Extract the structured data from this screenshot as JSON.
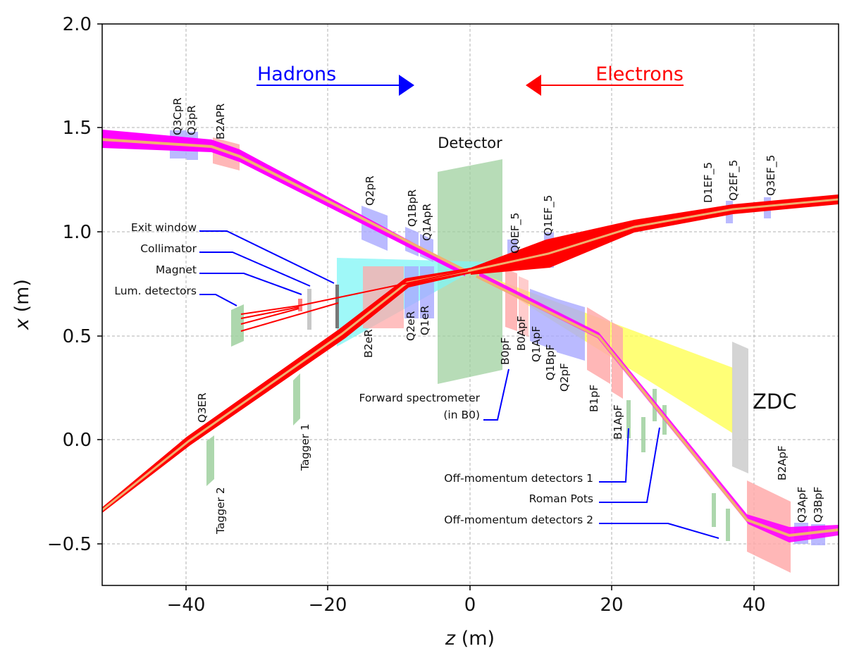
{
  "axes": {
    "xlabel_pre": "z",
    "xlabel_unit": " (m)",
    "ylabel_pre": "x",
    "ylabel_unit": " (m)",
    "xlim": [
      -52,
      52
    ],
    "ylim": [
      -0.7,
      2.0
    ],
    "xticks": [
      "−40",
      "−20",
      "0",
      "20",
      "40"
    ],
    "yticks": [
      "2.0",
      "1.5",
      "1.0",
      "0.5",
      "0.0",
      "−0.5"
    ],
    "grid": true
  },
  "colors": {
    "hadron_beam": "#ff00ff",
    "electron_beam": "#ff0000",
    "beam_core": "#f0b070",
    "hadron_arrow": "#0000ff",
    "electron_arrow": "#ff0000",
    "detector": "#9fd09f",
    "cyan_cone": "#7ff5f5",
    "yellow_cone": "#ffff66",
    "magnet_blue": "#a9a9ff",
    "magnet_pink": "#ffaaaa",
    "zdc": "#d0d0d0"
  },
  "arrows": {
    "hadrons": "Hadrons",
    "electrons": "Electrons"
  },
  "labels": {
    "detector": "Detector",
    "zdc": "ZDC"
  },
  "elements": {
    "Q3CpR": "Q3CpR",
    "Q3pR": "Q3pR",
    "B2APR": "B2APR",
    "Q2pR": "Q2pR",
    "Q1BpR": "Q1BpR",
    "Q1ApR": "Q1ApR",
    "Q0EF_5": "Q0EF_5",
    "Q1EF_5": "Q1EF_5",
    "D1EF_5": "D1EF_5",
    "Q2EF_5": "Q2EF_5",
    "Q3EF_5": "Q3EF_5",
    "B2eR": "B2eR",
    "Q2eR": "Q2eR",
    "Q1eR": "Q1eR",
    "B0pF": "B0pF",
    "B0ApF": "B0ApF",
    "Q1ApF": "Q1ApF",
    "Q1BpF": "Q1BpF",
    "Q2pF": "Q2pF",
    "B1pF": "B1pF",
    "B1ApF": "B1ApF",
    "B2ApF": "B2ApF",
    "Q3ApF": "Q3ApF",
    "Q3BpF": "Q3BpF",
    "Q3ER": "Q3ER",
    "Tagger2": "Tagger 2",
    "Tagger1": "Tagger 1"
  },
  "annotations": {
    "exit_window": "Exit window",
    "collimator": "Collimator",
    "magnet": "Magnet",
    "lum_detectors": "Lum. detectors",
    "forward_spectrometer_1": "Forward spectrometer",
    "forward_spectrometer_2": "(in B0)",
    "off_momentum_1": "Off-momentum detectors 1",
    "roman_pots": "Roman Pots",
    "off_momentum_2": "Off-momentum detectors 2"
  }
}
